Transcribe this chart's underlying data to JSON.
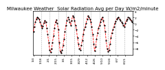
{
  "title": "Milwaukee Weather  Solar Radiation Avg per Day W/m2/minute",
  "line_color": "#FF0000",
  "marker_color": "#000000",
  "line_style": "--",
  "marker_style": "o",
  "background_color": "#FFFFFF",
  "grid_color": "#999999",
  "grid_style": "--",
  "ylim": [
    -10,
    4
  ],
  "yticks": [
    -8,
    -6,
    -4,
    -2,
    0,
    2,
    4
  ],
  "values": [
    -2.5,
    -1.0,
    0.5,
    1.5,
    2.0,
    1.8,
    1.5,
    0.5,
    -0.5,
    -1.5,
    -0.8,
    0.2,
    1.0,
    0.5,
    -1.5,
    -3.5,
    -6.0,
    -8.5,
    -9.2,
    -8.0,
    -6.0,
    -4.0,
    -1.5,
    0.5,
    1.2,
    0.0,
    -2.0,
    -6.0,
    -9.0,
    -9.5,
    -8.5,
    -7.0,
    -5.0,
    -2.5,
    -0.5,
    1.0,
    2.0,
    1.5,
    0.5,
    -0.5,
    1.0,
    2.5,
    2.0,
    1.0,
    -0.5,
    -2.0,
    -4.5,
    -6.5,
    -8.0,
    -8.5,
    -7.0,
    -5.5,
    -3.5,
    -2.0,
    -1.0,
    0.0,
    1.5,
    2.5,
    2.0,
    1.5,
    0.5,
    -1.0,
    -3.5,
    -6.5,
    -8.8,
    -7.5,
    -5.0,
    -3.0,
    -1.5,
    -0.5,
    0.5,
    1.5,
    2.0,
    1.0,
    -0.5,
    -2.5,
    -5.5,
    -8.0,
    -9.0,
    -8.5,
    -6.5,
    -4.5,
    -3.0,
    -2.0,
    -1.0,
    0.0,
    0.8,
    1.5,
    1.8,
    2.0,
    1.5,
    1.0,
    0.5,
    0.0,
    -0.5,
    -1.0,
    0.0,
    1.0,
    1.5,
    2.0,
    1.8,
    1.5,
    1.0,
    0.5
  ],
  "vgrid_x": [
    8,
    17,
    26,
    34,
    43,
    52,
    60,
    69,
    78,
    86,
    95
  ],
  "title_fontsize": 5.0,
  "tick_fontsize": 3.2,
  "marker_size": 1.2,
  "line_width": 0.6,
  "x_tick_step": 8
}
